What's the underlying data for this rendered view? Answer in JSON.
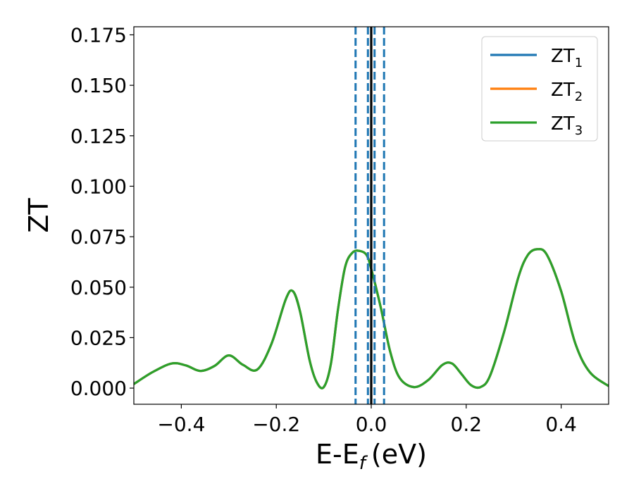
{
  "chart_data": {
    "type": "line",
    "xlabel": "E-E",
    "xlabel_subscript": "f",
    "xlabel_unit": "(eV)",
    "ylabel": "ZT",
    "xlim": [
      -0.5,
      0.5
    ],
    "ylim": [
      -0.008,
      0.179
    ],
    "x_ticks": [
      -0.4,
      -0.2,
      0.0,
      0.2,
      0.4
    ],
    "x_tick_labels": [
      "−0.4",
      "−0.2",
      "0.0",
      "0.2",
      "0.4"
    ],
    "y_ticks": [
      0.0,
      0.025,
      0.05,
      0.075,
      0.1,
      0.125,
      0.15,
      0.175
    ],
    "y_tick_labels": [
      "0.000",
      "0.025",
      "0.050",
      "0.075",
      "0.100",
      "0.125",
      "0.150",
      "0.175"
    ],
    "grid": false,
    "legend_position": "top-right",
    "x": [
      -0.5,
      -0.46,
      -0.42,
      -0.39,
      -0.36,
      -0.33,
      -0.3,
      -0.27,
      -0.24,
      -0.21,
      -0.18,
      -0.165,
      -0.15,
      -0.13,
      -0.115,
      -0.1,
      -0.085,
      -0.07,
      -0.055,
      -0.04,
      -0.025,
      -0.01,
      0.0,
      0.02,
      0.04,
      0.06,
      0.09,
      0.12,
      0.15,
      0.17,
      0.19,
      0.21,
      0.23,
      0.25,
      0.28,
      0.31,
      0.33,
      0.35,
      0.37,
      0.4,
      0.43,
      0.46,
      0.5
    ],
    "series": [
      {
        "name": "ZT",
        "subscript": "1",
        "color": "#1f77b4",
        "values": [
          0.002,
          0.008,
          0.0122,
          0.0112,
          0.0085,
          0.011,
          0.0162,
          0.0115,
          0.0092,
          0.022,
          0.044,
          0.048,
          0.038,
          0.014,
          0.003,
          0.0005,
          0.012,
          0.039,
          0.06,
          0.067,
          0.068,
          0.066,
          0.059,
          0.04,
          0.018,
          0.005,
          0.0005,
          0.004,
          0.0115,
          0.0122,
          0.007,
          0.0015,
          0.0005,
          0.006,
          0.028,
          0.055,
          0.066,
          0.0688,
          0.066,
          0.048,
          0.022,
          0.008,
          0.001
        ]
      },
      {
        "name": "ZT",
        "subscript": "2",
        "color": "#ff7f0e",
        "values": [
          0.002,
          0.008,
          0.0122,
          0.0112,
          0.0085,
          0.011,
          0.0162,
          0.0115,
          0.0092,
          0.022,
          0.044,
          0.048,
          0.038,
          0.014,
          0.003,
          0.0005,
          0.012,
          0.039,
          0.06,
          0.067,
          0.068,
          0.066,
          0.059,
          0.04,
          0.018,
          0.005,
          0.0005,
          0.004,
          0.0115,
          0.0122,
          0.007,
          0.0015,
          0.0005,
          0.006,
          0.028,
          0.055,
          0.066,
          0.0688,
          0.066,
          0.048,
          0.022,
          0.008,
          0.001
        ]
      },
      {
        "name": "ZT",
        "subscript": "3",
        "color": "#2ca02c",
        "values": [
          0.002,
          0.008,
          0.0122,
          0.0112,
          0.0085,
          0.011,
          0.0162,
          0.0115,
          0.0092,
          0.022,
          0.044,
          0.048,
          0.038,
          0.014,
          0.003,
          0.0005,
          0.012,
          0.039,
          0.06,
          0.067,
          0.068,
          0.066,
          0.059,
          0.04,
          0.018,
          0.005,
          0.0005,
          0.004,
          0.0115,
          0.0122,
          0.007,
          0.0015,
          0.0005,
          0.006,
          0.028,
          0.055,
          0.066,
          0.0688,
          0.066,
          0.048,
          0.022,
          0.008,
          0.001
        ]
      }
    ],
    "vertical_lines": [
      {
        "x": -0.033,
        "style": "dashed",
        "color": "#1f77b4"
      },
      {
        "x": -0.007,
        "style": "dashed",
        "color": "#1f77b4"
      },
      {
        "x": 0.0,
        "style": "solid",
        "color": "#000000"
      },
      {
        "x": 0.007,
        "style": "dashed",
        "color": "#1f77b4"
      },
      {
        "x": 0.027,
        "style": "dashed",
        "color": "#1f77b4"
      }
    ]
  }
}
